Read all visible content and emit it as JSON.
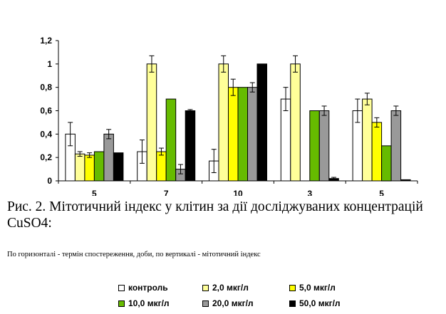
{
  "chart_data": {
    "type": "bar",
    "categories": [
      "5",
      "7",
      "10",
      "3",
      "5"
    ],
    "ylim": [
      0,
      1.2
    ],
    "yticks": [
      "0",
      "0,2",
      "0,4",
      "0,6",
      "0,8",
      "1",
      "1,2"
    ],
    "ytick_values": [
      0,
      0.2,
      0.4,
      0.6,
      0.8,
      1.0,
      1.2
    ],
    "grid": false,
    "legend_position": "bottom",
    "series": [
      {
        "name": "контроль",
        "color": "#ffffff",
        "values": [
          0.4,
          0.25,
          0.17,
          0.7,
          0.6
        ],
        "errors": [
          0.1,
          0.1,
          0.1,
          0.1,
          0.1
        ]
      },
      {
        "name": "2,0 мкг/л",
        "color": "#ffff99",
        "values": [
          0.23,
          1.0,
          1.0,
          1.0,
          0.7
        ],
        "errors": [
          0.02,
          0.07,
          0.07,
          0.07,
          0.05
        ]
      },
      {
        "name": "5,0 мкг/л",
        "color": "#ffff00",
        "values": [
          0.22,
          0.25,
          0.8,
          0.0,
          0.5
        ],
        "errors": [
          0.02,
          0.03,
          0.07,
          0.0,
          0.04
        ]
      },
      {
        "name": "10,0 мкг/л",
        "color": "#66bb00",
        "values": [
          0.25,
          0.7,
          0.8,
          0.6,
          0.3
        ],
        "errors": [
          0.0,
          0.0,
          0.0,
          0.0,
          0.0
        ]
      },
      {
        "name": "20,0 мкг/л",
        "color": "#999999",
        "values": [
          0.4,
          0.1,
          0.8,
          0.6,
          0.6
        ],
        "errors": [
          0.04,
          0.04,
          0.04,
          0.04,
          0.04
        ]
      },
      {
        "name": "50,0 мкг/л",
        "color": "#000000",
        "values": [
          0.24,
          0.6,
          1.0,
          0.02,
          0.01
        ],
        "errors": [
          0.0,
          0.01,
          0.0,
          0.01,
          0.0
        ]
      }
    ]
  },
  "caption": "Рис. 2. Мітотичний індекс у клітин за дії досліджуваних концентрацій CuSO4:",
  "note": "По горизонталі - термін спостереження, доби, по вертикалі - мітотичний індекс"
}
